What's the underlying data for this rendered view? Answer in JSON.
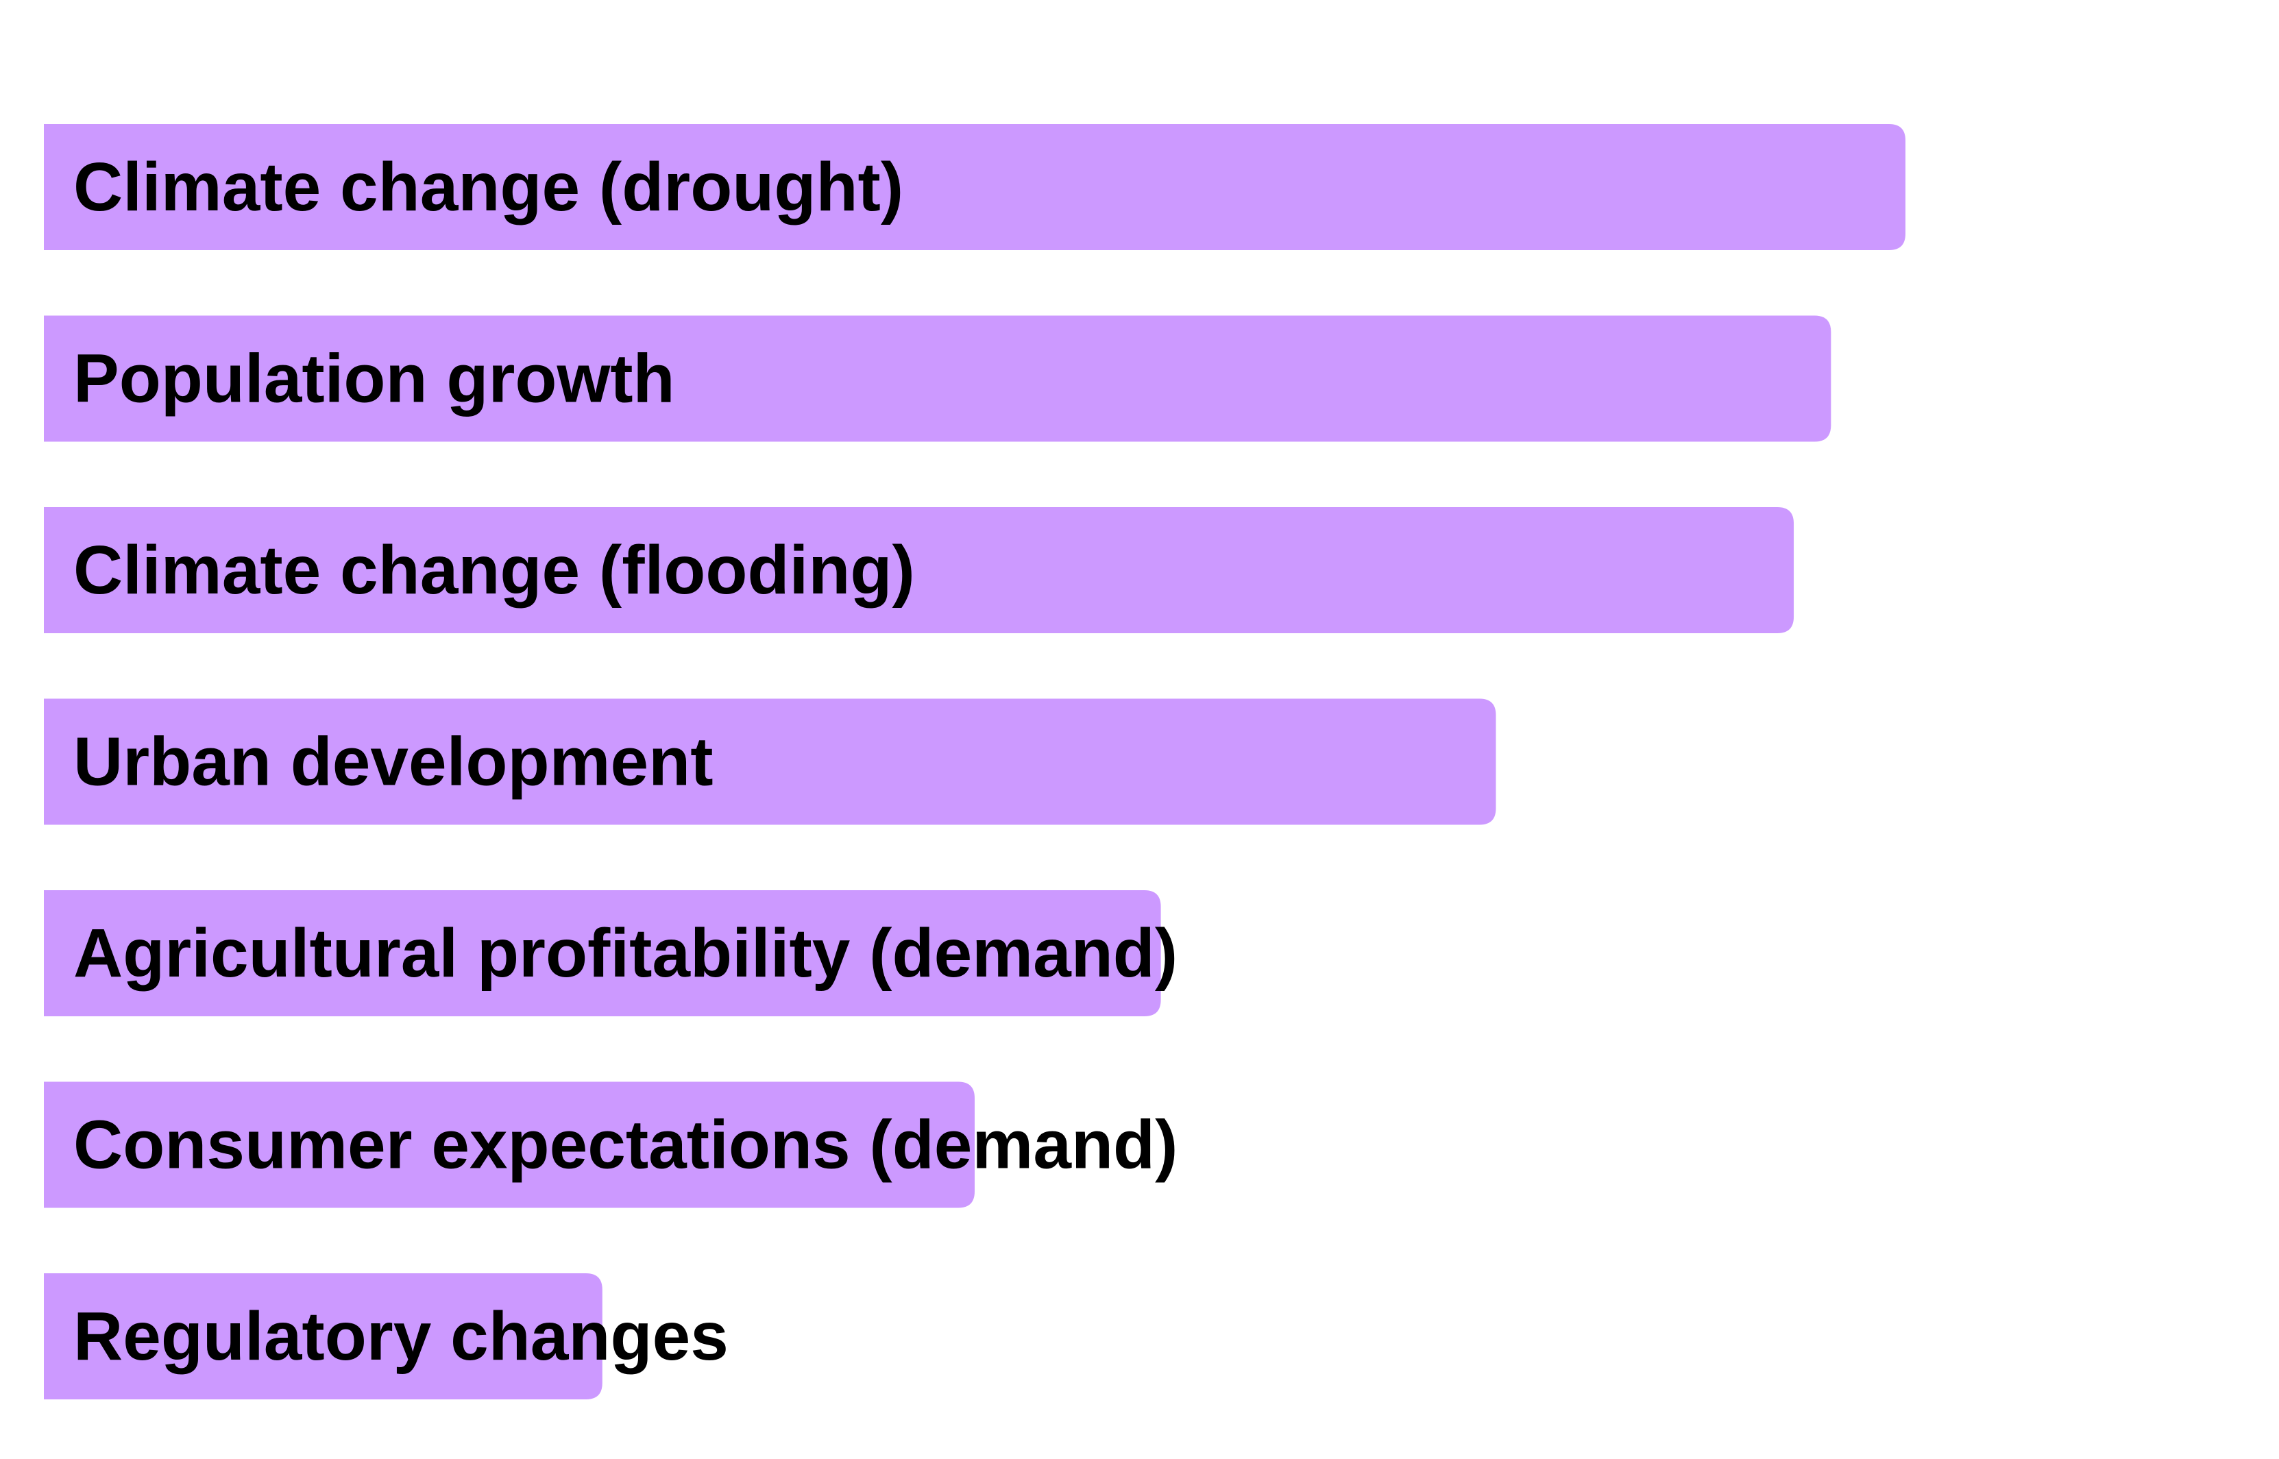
{
  "chart_data": {
    "type": "bar",
    "orientation": "horizontal",
    "categories": [
      "Climate change (drought)",
      "Population growth",
      "Climate change (flooding)",
      "Urban development",
      "Agricultural profitability (demand)",
      "Consumer expectations (demand)",
      "Regulatory changes"
    ],
    "values": [
      100,
      96,
      94,
      78,
      60,
      50,
      30
    ],
    "title": "",
    "xlabel": "",
    "ylabel": "",
    "xlim": [
      0,
      100
    ],
    "grid": false,
    "legend": "none",
    "bar_color": "#cc99ff",
    "label_color": "#000000"
  }
}
